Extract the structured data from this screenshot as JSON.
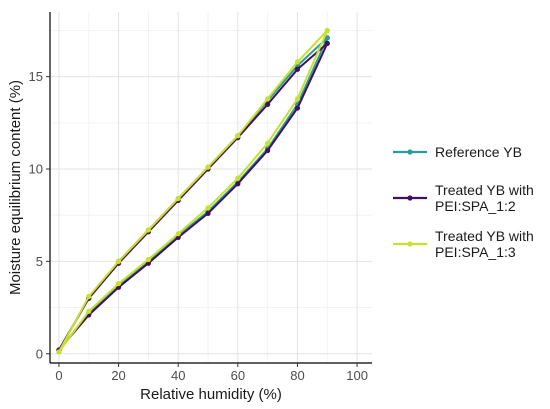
{
  "chart_data": {
    "type": "line",
    "title": "",
    "xlabel": "Relative humidity (%)",
    "ylabel": "Moisture equilibrium content (%)",
    "xlim": [
      -3,
      105
    ],
    "ylim": [
      -0.5,
      18.5
    ],
    "xticks": [
      0,
      20,
      40,
      60,
      80,
      100
    ],
    "yticks": [
      0,
      5,
      10,
      15
    ],
    "grid": true,
    "legend_position": "right",
    "series": [
      {
        "name": "Reference YB",
        "color": "#2a9d98",
        "curves": [
          {
            "x": [
              0,
              10,
              20,
              30,
              40,
              50,
              60,
              70,
              80,
              90
            ],
            "y": [
              0.2,
              3.0,
              5.0,
              6.7,
              8.4,
              10.1,
              11.8,
              13.7,
              15.6,
              17.1
            ]
          },
          {
            "x": [
              0,
              10,
              20,
              30,
              40,
              50,
              60,
              70,
              80,
              90
            ],
            "y": [
              0.2,
              2.2,
              3.7,
              5.0,
              6.4,
              7.7,
              9.3,
              11.1,
              13.5,
              17.1
            ]
          }
        ]
      },
      {
        "name": "Treated YB with PEI:SPA_1:2",
        "color": "#44105a",
        "curves": [
          {
            "x": [
              0,
              10,
              20,
              30,
              40,
              50,
              60,
              70,
              80,
              90
            ],
            "y": [
              0.2,
              3.0,
              4.9,
              6.6,
              8.3,
              10.0,
              11.7,
              13.5,
              15.4,
              16.8
            ]
          },
          {
            "x": [
              0,
              10,
              20,
              30,
              40,
              50,
              60,
              70,
              80,
              90
            ],
            "y": [
              0.2,
              2.1,
              3.6,
              4.9,
              6.3,
              7.6,
              9.2,
              11.0,
              13.3,
              16.8
            ]
          }
        ]
      },
      {
        "name": "Treated YB with PEI:SPA_1:3",
        "color": "#c8e02e",
        "curves": [
          {
            "x": [
              0,
              10,
              20,
              30,
              40,
              50,
              60,
              70,
              80,
              90
            ],
            "y": [
              0.1,
              3.1,
              5.0,
              6.7,
              8.4,
              10.1,
              11.8,
              13.8,
              15.8,
              17.5
            ]
          },
          {
            "x": [
              0,
              10,
              20,
              30,
              40,
              50,
              60,
              70,
              80,
              90
            ],
            "y": [
              0.1,
              2.3,
              3.8,
              5.1,
              6.5,
              7.9,
              9.5,
              11.4,
              13.8,
              17.5
            ]
          }
        ]
      }
    ],
    "legend": [
      {
        "lines": [
          "Reference YB"
        ]
      },
      {
        "lines": [
          "Treated YB with",
          "PEI:SPA_1:2"
        ]
      },
      {
        "lines": [
          "Treated YB with",
          "PEI:SPA_1:3"
        ]
      }
    ]
  }
}
